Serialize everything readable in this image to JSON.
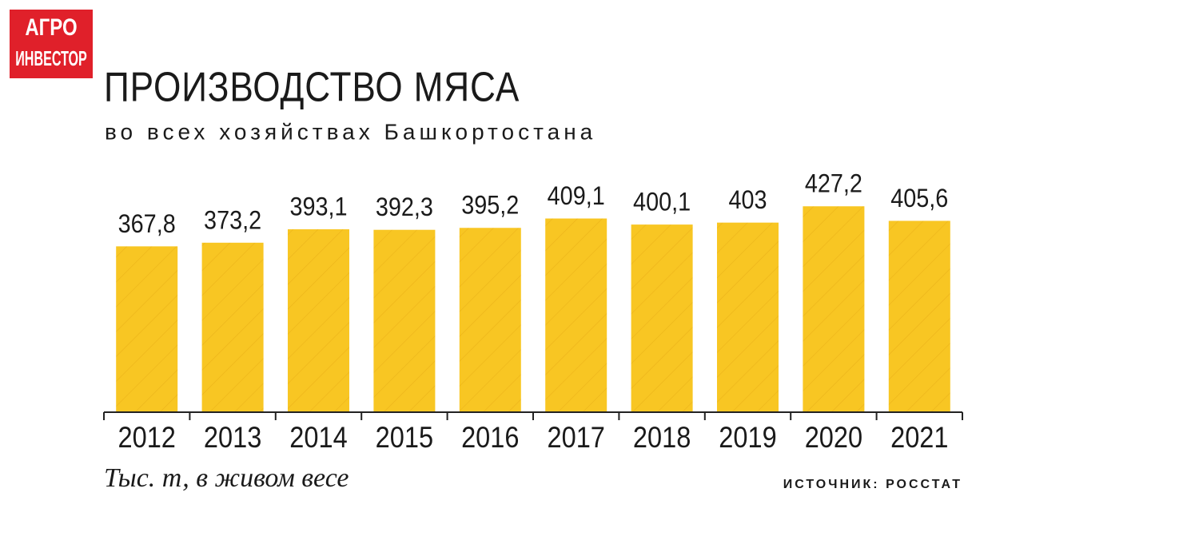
{
  "logo": {
    "line1": "АГРО",
    "line2": "ИНВЕСТОР"
  },
  "chart_data": {
    "type": "bar",
    "title": "ПРОИЗВОДСТВО МЯСА",
    "subtitle": "во всех хозяйствах Башкортостана",
    "categories": [
      "2012",
      "2013",
      "2014",
      "2015",
      "2016",
      "2017",
      "2018",
      "2019",
      "2020",
      "2021"
    ],
    "values": [
      367.8,
      373.2,
      393.1,
      392.3,
      395.2,
      409.1,
      400.1,
      403,
      427.2,
      405.6
    ],
    "value_labels": [
      "367,8",
      "373,2",
      "393,1",
      "392,3",
      "395,2",
      "409,1",
      "400,1",
      "403",
      "427,2",
      "405,6"
    ],
    "color": "#f8c623",
    "ylim": [
      123,
      450
    ],
    "unit_note": "Тыс. т, в живом весе",
    "source": "ИСТОЧНИК: РОССТАТ"
  }
}
